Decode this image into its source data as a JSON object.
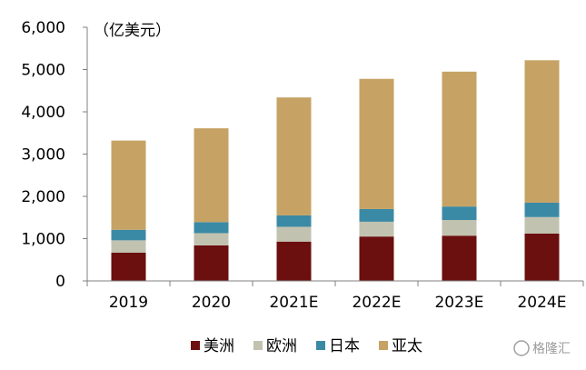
{
  "chart_data": {
    "type": "bar",
    "stacked": true,
    "unit_label": "（亿美元）",
    "categories": [
      "2019",
      "2020",
      "2021E",
      "2022E",
      "2023E",
      "2024E"
    ],
    "ylim": [
      0,
      6000
    ],
    "yticks": [
      "0",
      "1,000",
      "2,000",
      "3,000",
      "4,000",
      "5,000",
      "6,000"
    ],
    "ytick_values": [
      0,
      1000,
      2000,
      3000,
      4000,
      5000,
      6000
    ],
    "grid": false,
    "legend_position": "bottom",
    "series": [
      {
        "name": "美洲",
        "color": "#6b0f0f",
        "values": [
          670,
          840,
          930,
          1050,
          1070,
          1120
        ]
      },
      {
        "name": "欧洲",
        "color": "#c2c2b0",
        "values": [
          290,
          290,
          350,
          350,
          370,
          390
        ]
      },
      {
        "name": "日本",
        "color": "#3b8aa5",
        "values": [
          250,
          260,
          270,
          300,
          320,
          340
        ]
      },
      {
        "name": "亚太",
        "color": "#c6a364",
        "values": [
          2110,
          2220,
          2790,
          3080,
          3190,
          3370
        ]
      }
    ]
  },
  "watermark": {
    "text": "格隆汇",
    "icon": "gelonghui-logo-icon"
  }
}
